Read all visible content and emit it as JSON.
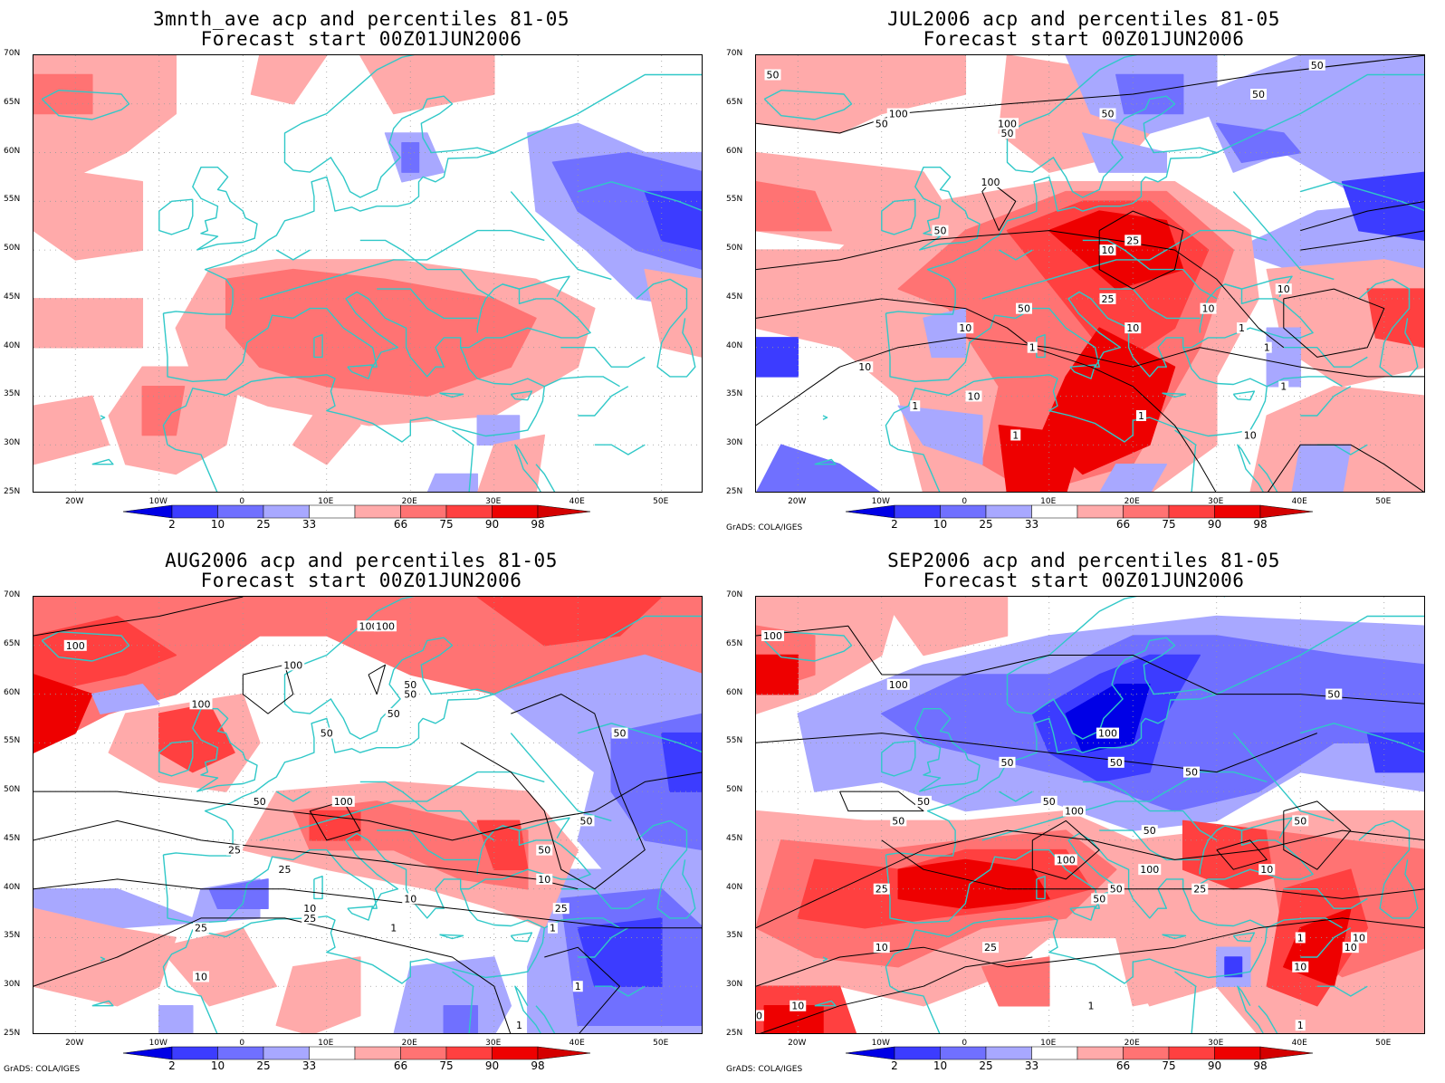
{
  "panels": [
    {
      "title_line1": "3mnth_ave acp and percentiles 81-05",
      "title_line2": "Forecast start 00Z01JUN2006",
      "credit": ""
    },
    {
      "title_line1": "JUL2006 acp and percentiles 81-05",
      "title_line2": "Forecast start 00Z01JUN2006",
      "credit": "GrADS: COLA/IGES"
    },
    {
      "title_line1": "AUG2006 acp and percentiles 81-05",
      "title_line2": "Forecast start 00Z01JUN2006",
      "credit": "GrADS: COLA/IGES"
    },
    {
      "title_line1": "SEP2006 acp and percentiles 81-05",
      "title_line2": "Forecast start 00Z01JUN2006",
      "credit": "GrADS: COLA/IGES"
    }
  ],
  "lat_labels": [
    "70N",
    "65N",
    "60N",
    "55N",
    "50N",
    "45N",
    "40N",
    "35N",
    "30N",
    "25N"
  ],
  "lon_labels": [
    "20W",
    "10W",
    "0",
    "10E",
    "20E",
    "30E",
    "40E",
    "50E"
  ],
  "colorbar": {
    "labels": [
      "2",
      "10",
      "25",
      "33",
      "66",
      "75",
      "90",
      "98"
    ],
    "colors": [
      "#0000e6",
      "#3c3cff",
      "#7070ff",
      "#a8a8ff",
      "#ffffff",
      "#ffaaaa",
      "#ff7373",
      "#ff4040",
      "#ee0000",
      "#d40000"
    ]
  },
  "colors": {
    "coastline": "#30c8c8",
    "contour": "#000000",
    "grid": "#999999"
  },
  "contour_labels": {
    "jul": [
      "50",
      "50",
      "50",
      "100",
      "50",
      "50",
      "100",
      "50",
      "100",
      "25",
      "50",
      "10",
      "10",
      "50",
      "25",
      "10",
      "10",
      "1",
      "10",
      "10",
      "1",
      "1",
      "1",
      "1",
      "1",
      "10",
      "1",
      "10"
    ],
    "aug": [
      "100",
      "100",
      "100",
      "100",
      "50",
      "100",
      "50",
      "50",
      "50",
      "100",
      "50",
      "50",
      "25",
      "50",
      "25",
      "10",
      "25",
      "10",
      "1",
      "10",
      "25",
      "10",
      "1",
      "1",
      "1",
      "50",
      "25"
    ],
    "sep": [
      "100",
      "100",
      "50",
      "100",
      "50",
      "50",
      "50",
      "50",
      "50",
      "100",
      "50",
      "100",
      "100",
      "50",
      "50",
      "25",
      "50",
      "10",
      "10",
      "25",
      "1",
      "10",
      "1",
      "10",
      "10",
      "25",
      "50",
      "10",
      "1",
      "10"
    ]
  }
}
